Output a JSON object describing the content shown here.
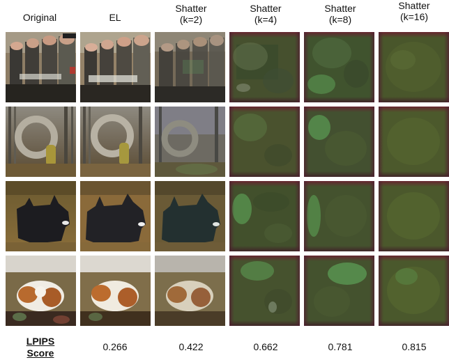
{
  "columns": [
    {
      "line1": "Original",
      "line2": ""
    },
    {
      "line1": "EL",
      "line2": ""
    },
    {
      "line1": "Shatter",
      "line2": "(k=2)"
    },
    {
      "line1": "Shatter",
      "line2": "(k=4)"
    },
    {
      "line1": "Shatter",
      "line2": "(k=8)"
    },
    {
      "line1": "Shatter",
      "line2": "(k=16)"
    }
  ],
  "rows": [
    "soldiers",
    "stone-arch",
    "scottish-terrier",
    "spaniel-puppy"
  ],
  "score_label": {
    "line1": "LPIPS",
    "line2": "Score"
  },
  "scores": [
    "0.266",
    "0.422",
    "0.662",
    "0.781",
    "0.815"
  ]
}
